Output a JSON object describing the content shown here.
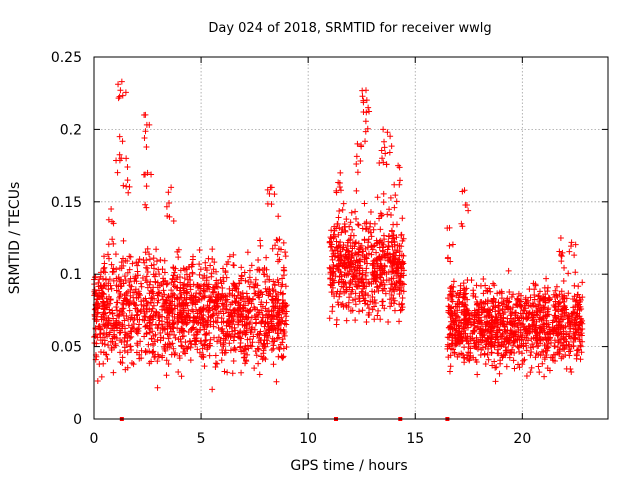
{
  "chart_data": {
    "type": "scatter",
    "title": "Day 024 of 2018, SRMTID for receiver wwlg",
    "xlabel": "GPS time / hours",
    "ylabel": "SRMTID / TECUs",
    "xlim": [
      0,
      24
    ],
    "ylim": [
      0,
      0.25
    ],
    "x_ticks": [
      0,
      5,
      10,
      15,
      20
    ],
    "y_ticks": [
      0,
      0.05,
      0.1,
      0.15,
      0.2,
      0.25
    ],
    "x_tick_labels": [
      "0",
      "5",
      "10",
      "15",
      "20"
    ],
    "y_tick_labels": [
      "0",
      "0.05",
      "0.1",
      "0.15",
      "0.2",
      "0.25"
    ],
    "grid": true,
    "point_color": "#ff0000",
    "marker": "plus",
    "series": [
      {
        "name": "SRMTID",
        "segments": [
          {
            "t_start": 0.0,
            "t_end": 9.0,
            "count": 1500,
            "base": [
              0.013,
              0.12
            ],
            "spikes": [
              [
                0.8,
                0.145
              ],
              [
                1.2,
                0.195
              ],
              [
                1.3,
                0.233
              ],
              [
                1.5,
                0.18
              ],
              [
                2.4,
                0.21
              ],
              [
                2.5,
                0.17
              ],
              [
                3.6,
                0.16
              ],
              [
                8.3,
                0.16
              ],
              [
                8.6,
                0.14
              ]
            ]
          },
          {
            "t_start": 11.0,
            "t_end": 14.5,
            "count": 600,
            "base": [
              0.045,
              0.15
            ],
            "spikes": [
              [
                11.5,
                0.17
              ],
              [
                12.3,
                0.19
              ],
              [
                12.7,
                0.227
              ],
              [
                12.8,
                0.215
              ],
              [
                13.5,
                0.2
              ],
              [
                13.7,
                0.198
              ],
              [
                14.2,
                0.175
              ]
            ]
          },
          {
            "t_start": 16.5,
            "t_end": 22.8,
            "count": 1100,
            "base": [
              0.018,
              0.1
            ],
            "spikes": [
              [
                16.6,
                0.132
              ],
              [
                17.3,
                0.158
              ],
              [
                21.8,
                0.125
              ],
              [
                22.3,
                0.122
              ]
            ]
          }
        ]
      }
    ],
    "bottom_markers_x": [
      1.3,
      11.3,
      14.3,
      16.5
    ]
  }
}
